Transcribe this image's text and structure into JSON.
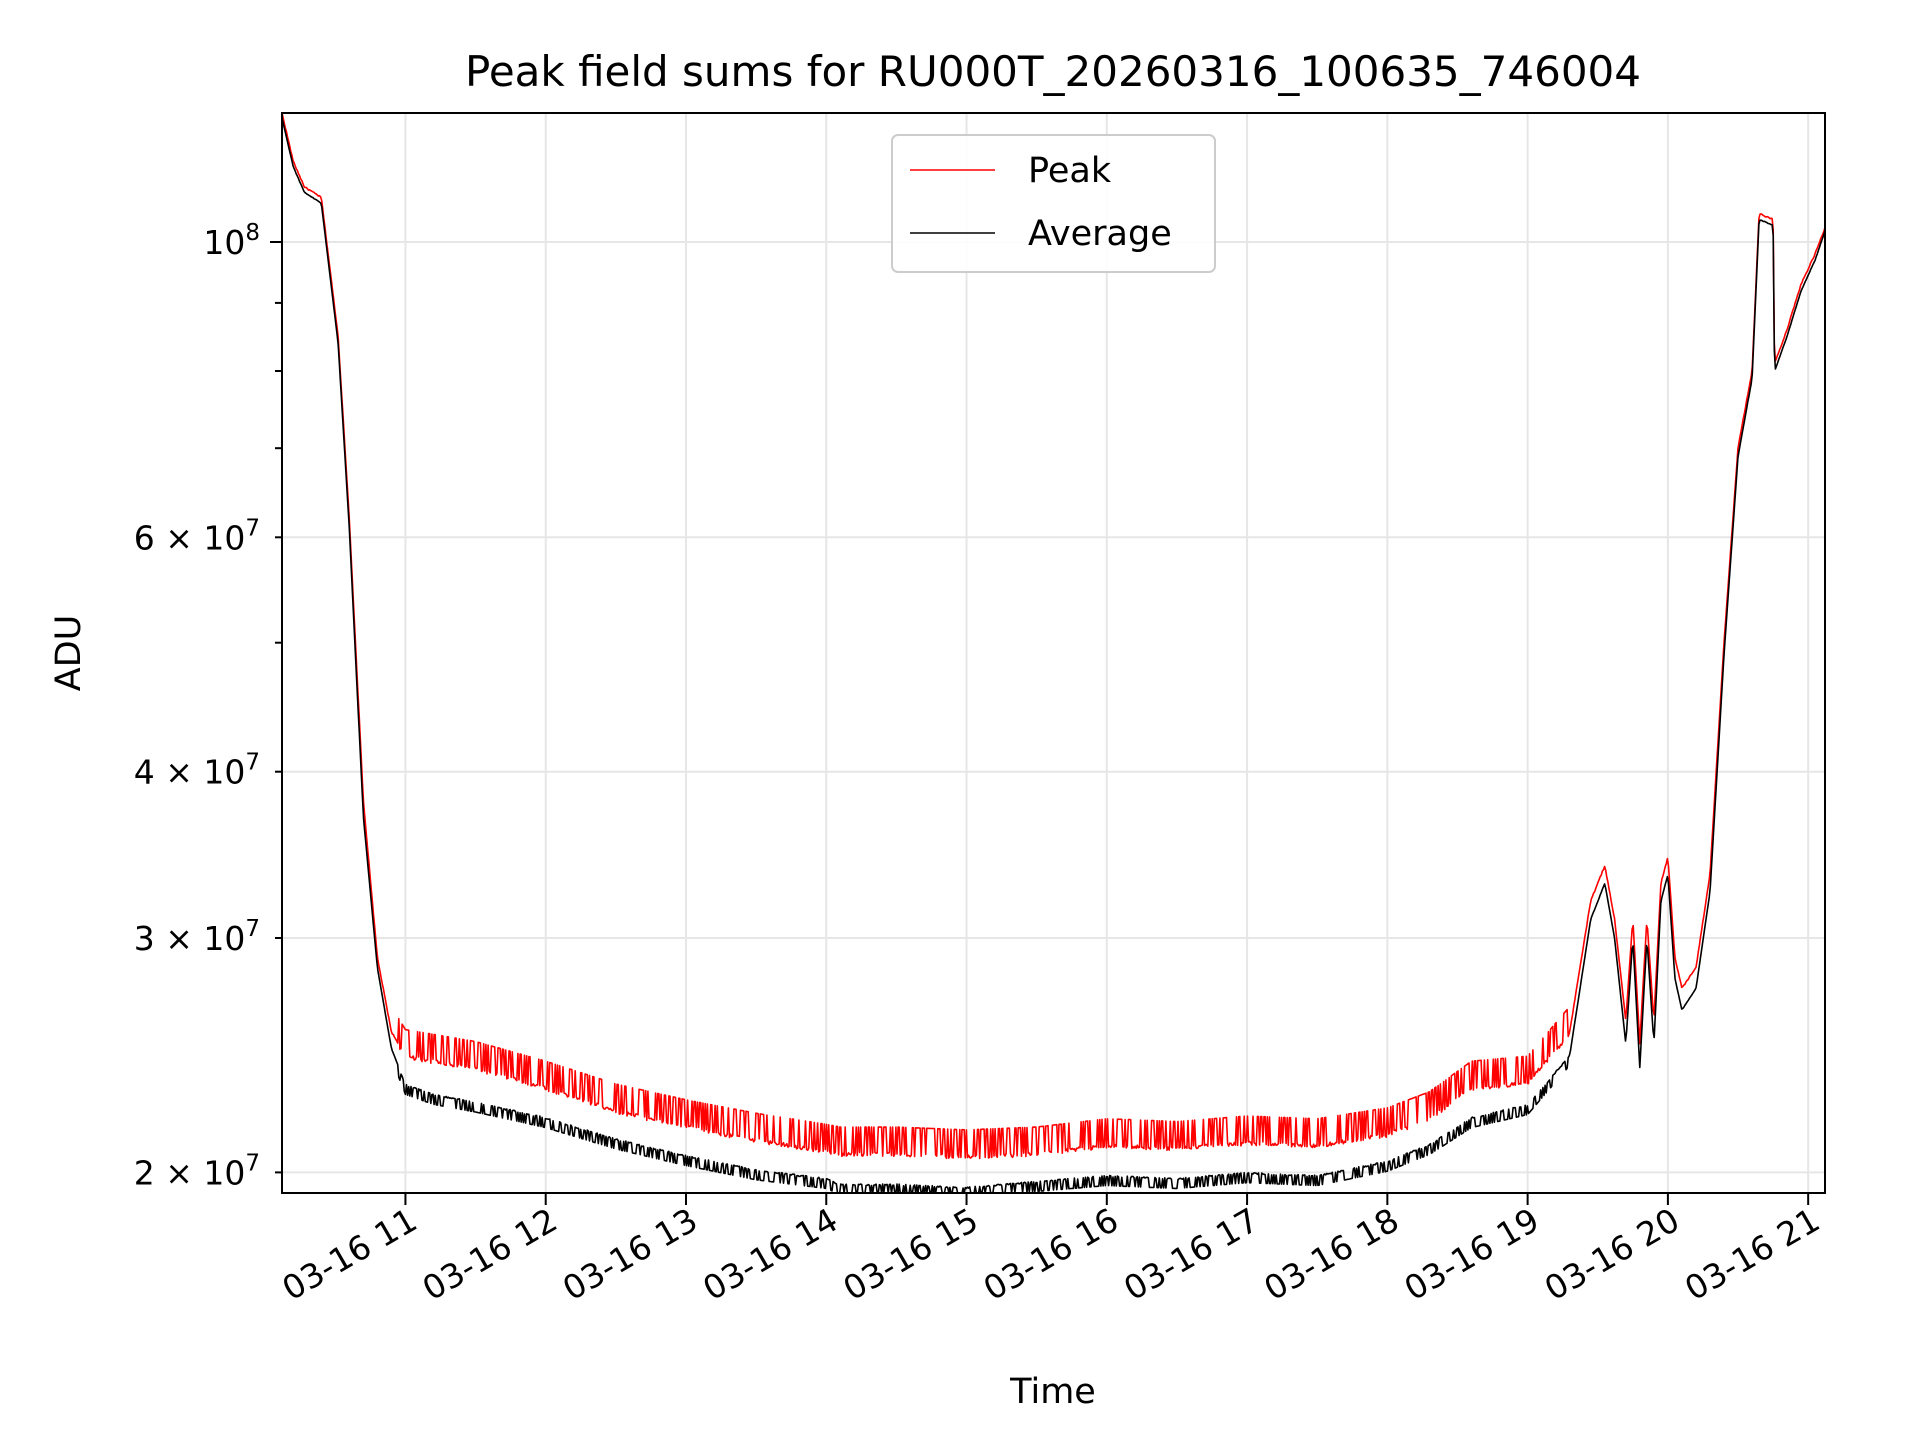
{
  "chart_data": {
    "type": "line",
    "title": "Peak field sums for RU000T_20260316_100635_746004",
    "xlabel": "Time",
    "ylabel": "ADU",
    "yscale": "log",
    "ylim": [
      19300000,
      125000000
    ],
    "xlim": [
      10.12,
      21.12
    ],
    "x_unit": "hour of 2026-03-16",
    "grid": true,
    "legend_position": "upper center",
    "x_ticks": [
      {
        "value": 11,
        "label": "03-16 11"
      },
      {
        "value": 12,
        "label": "03-16 12"
      },
      {
        "value": 13,
        "label": "03-16 13"
      },
      {
        "value": 14,
        "label": "03-16 14"
      },
      {
        "value": 15,
        "label": "03-16 15"
      },
      {
        "value": 16,
        "label": "03-16 16"
      },
      {
        "value": 17,
        "label": "03-16 17"
      },
      {
        "value": 18,
        "label": "03-16 18"
      },
      {
        "value": 19,
        "label": "03-16 19"
      },
      {
        "value": 20,
        "label": "03-16 20"
      },
      {
        "value": 21,
        "label": "03-16 21"
      }
    ],
    "y_ticks_major": [
      {
        "value": 100000000,
        "mantissa": "",
        "base": "10",
        "exp": "8"
      }
    ],
    "y_ticks_minor": [
      {
        "value": 20000000,
        "mantissa": "2",
        "base": "10",
        "exp": "7"
      },
      {
        "value": 30000000,
        "mantissa": "3",
        "base": "10",
        "exp": "7"
      },
      {
        "value": 40000000,
        "mantissa": "4",
        "base": "10",
        "exp": "7"
      },
      {
        "value": 60000000,
        "mantissa": "6",
        "base": "10",
        "exp": "7"
      }
    ],
    "y_ticks_minor_unlabeled": [
      50000000,
      70000000,
      80000000,
      90000000
    ],
    "series": [
      {
        "name": "Peak",
        "color": "#ff0000",
        "x": [
          10.12,
          10.2,
          10.28,
          10.4,
          10.52,
          10.6,
          10.7,
          10.8,
          10.9,
          11.0,
          11.2,
          11.5,
          12.0,
          12.5,
          13.0,
          13.5,
          14.0,
          14.1,
          14.5,
          15.0,
          15.5,
          16.0,
          16.5,
          17.0,
          17.5,
          18.0,
          18.3,
          18.6,
          19.0,
          19.3,
          19.45,
          19.55,
          19.62,
          19.7,
          19.75,
          19.8,
          19.85,
          19.9,
          19.95,
          20.0,
          20.05,
          20.1,
          20.2,
          20.3,
          20.4,
          20.5,
          20.6,
          20.65,
          20.75,
          20.76,
          20.85,
          20.95,
          21.05,
          21.12
        ],
        "values": [
          125000000,
          115000000,
          110000000,
          108000000,
          85000000,
          62000000,
          38000000,
          29000000,
          25500000,
          24500000,
          24300000,
          24000000,
          23200000,
          22300000,
          21700000,
          21200000,
          20800000,
          20700000,
          20700000,
          20600000,
          20700000,
          21000000,
          20900000,
          21100000,
          21000000,
          21400000,
          22000000,
          23200000,
          23400000,
          25500000,
          32000000,
          34000000,
          31000000,
          26000000,
          31000000,
          25000000,
          31000000,
          26000000,
          33000000,
          34500000,
          29000000,
          27500000,
          28500000,
          33500000,
          50000000,
          70000000,
          80000000,
          105000000,
          104000000,
          81000000,
          86000000,
          93000000,
          98000000,
          102500000
        ]
      },
      {
        "name": "Average",
        "color": "#000000",
        "x": [
          10.12,
          10.2,
          10.28,
          10.4,
          10.52,
          10.6,
          10.7,
          10.8,
          10.9,
          11.0,
          11.2,
          11.5,
          12.0,
          12.5,
          13.0,
          13.5,
          14.0,
          14.1,
          14.5,
          15.0,
          15.5,
          16.0,
          16.5,
          17.0,
          17.5,
          18.0,
          18.3,
          18.6,
          19.0,
          19.3,
          19.45,
          19.55,
          19.62,
          19.7,
          19.75,
          19.8,
          19.85,
          19.9,
          19.95,
          20.0,
          20.05,
          20.1,
          20.2,
          20.3,
          20.4,
          20.5,
          20.6,
          20.65,
          20.75,
          20.76,
          20.85,
          20.95,
          21.05,
          21.12
        ],
        "values": [
          124000000,
          114000000,
          109000000,
          107000000,
          84000000,
          61000000,
          37000000,
          28500000,
          24800000,
          23300000,
          22900000,
          22600000,
          22000000,
          21200000,
          20600000,
          20100000,
          19800000,
          19600000,
          19600000,
          19500000,
          19700000,
          19900000,
          19800000,
          20000000,
          19900000,
          20400000,
          21000000,
          22000000,
          22500000,
          24500000,
          31000000,
          33000000,
          30000000,
          25000000,
          30000000,
          24000000,
          30000000,
          25000000,
          32000000,
          33500000,
          28000000,
          26500000,
          27500000,
          32500000,
          49000000,
          69000000,
          79000000,
          104000000,
          103000000,
          80000000,
          85000000,
          92000000,
          97000000,
          102000000
        ]
      }
    ]
  }
}
